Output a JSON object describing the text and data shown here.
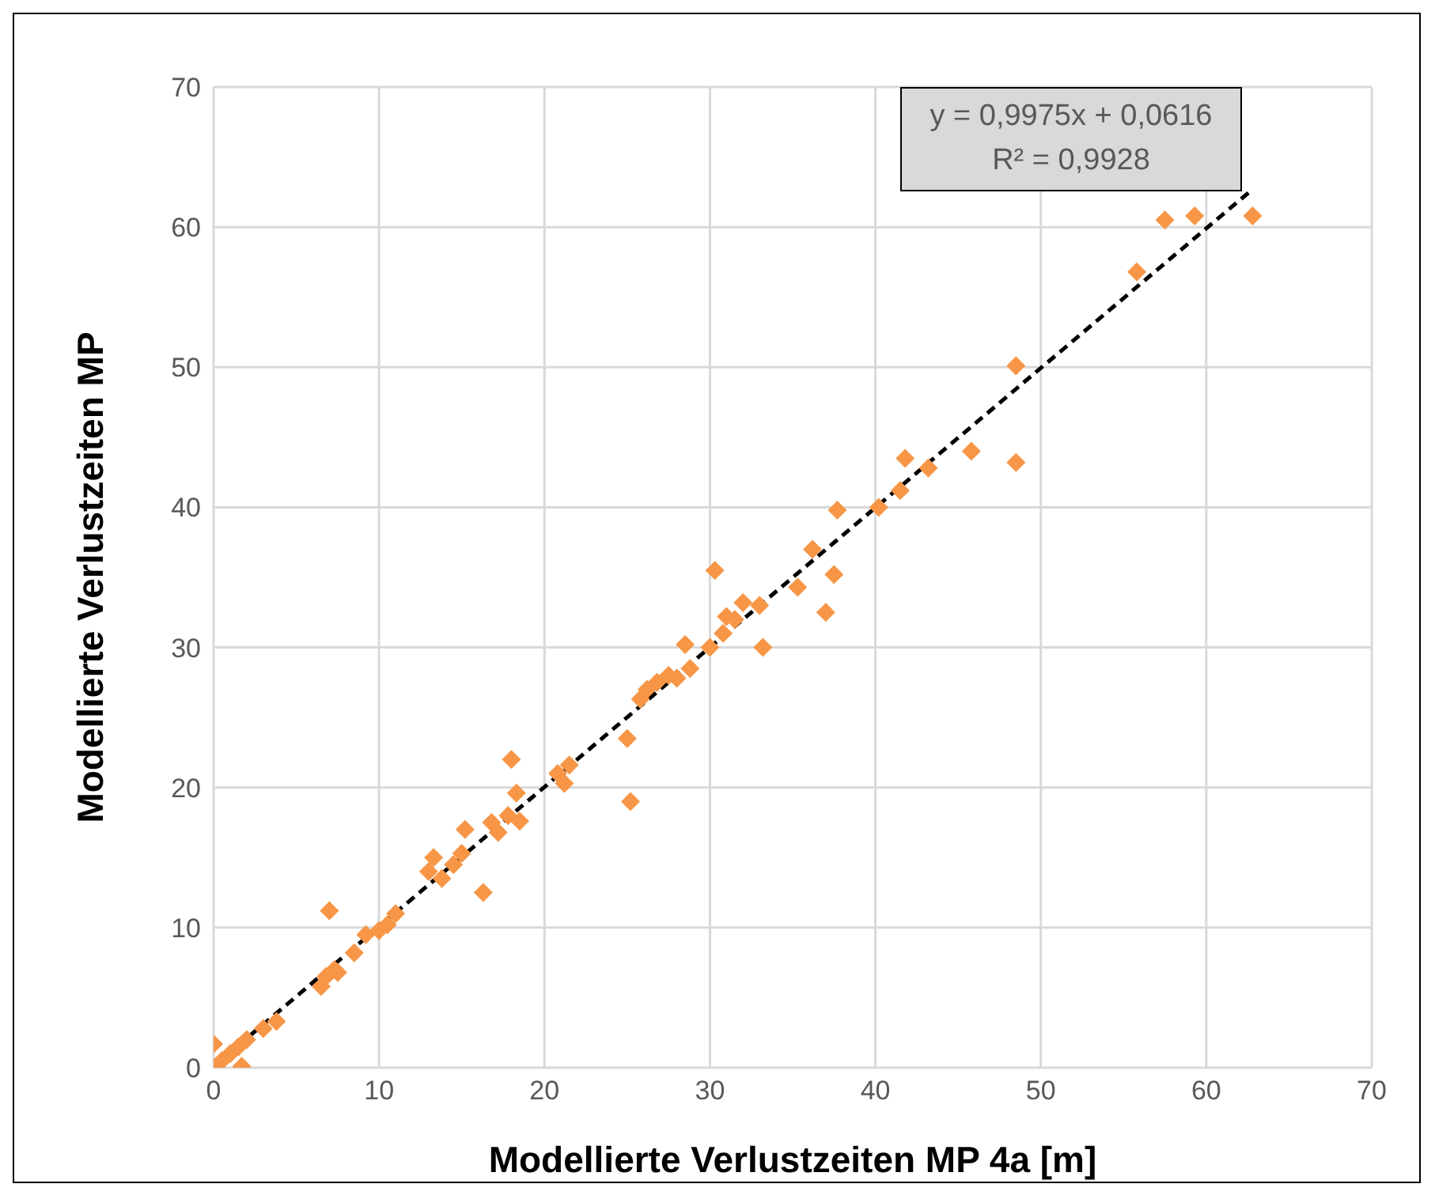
{
  "chart_data": {
    "type": "scatter",
    "xlabel": "Modellierte Verlustzeiten MP 4a [m]",
    "ylabel": "Modellierte Verlustzeiten MP",
    "xlim": [
      0,
      70
    ],
    "xticks": [
      0,
      10,
      20,
      30,
      40,
      50,
      60,
      70
    ],
    "ylim": [
      0,
      70
    ],
    "yticks": [
      0,
      10,
      20,
      30,
      40,
      50,
      60,
      70
    ],
    "grid": true,
    "marker": "diamond",
    "annotations": [
      "y = 0,9975x + 0,0616",
      "R² = 0,9928"
    ],
    "series": [
      {
        "type": "line",
        "color": "#000000",
        "line_style": "dashed",
        "marker": "none",
        "x": [
          0,
          62.8
        ],
        "values": [
          0.1,
          62.7
        ]
      },
      {
        "color": "#f79646",
        "x": [
          0,
          0,
          0.5,
          1,
          1.5,
          1.7,
          2,
          3,
          3.8,
          6.5,
          6.8,
          7,
          7.3,
          7.5,
          8.5,
          9.2,
          10,
          10.5,
          11,
          13,
          13.3,
          13.8,
          14.5,
          15,
          15.2,
          16.3,
          16.8,
          17.2,
          17.8,
          18,
          18.3,
          18.5,
          20.8,
          21.2,
          21.5,
          25,
          25.2,
          25.8,
          26.2,
          26.8,
          27.5,
          28,
          28.5,
          28.8,
          30,
          30.3,
          30.8,
          31,
          31.5,
          32,
          33,
          33.2,
          35.3,
          36.2,
          37,
          37.5,
          37.7,
          40.2,
          41.5,
          41.8,
          43.2,
          45.8,
          48.5,
          48.5,
          55.8,
          57.5,
          59.3,
          62.8
        ],
        "values": [
          0,
          1.7,
          0.5,
          1,
          1.5,
          0.1,
          2,
          2.8,
          3.3,
          5.8,
          6.5,
          11.2,
          7,
          6.8,
          8.2,
          9.5,
          9.8,
          10.2,
          11,
          14,
          15,
          13.5,
          14.5,
          15.3,
          17,
          12.5,
          17.5,
          16.8,
          18,
          22,
          19.6,
          17.6,
          21,
          20.3,
          21.6,
          23.5,
          19,
          26.3,
          27,
          27.5,
          28,
          27.8,
          30.2,
          28.5,
          30,
          35.5,
          31,
          32.2,
          32,
          33.2,
          33,
          30,
          34.3,
          37,
          32.5,
          35.2,
          39.8,
          40,
          41.2,
          43.5,
          42.8,
          44,
          43.2,
          50.1,
          56.8,
          60.5,
          60.8,
          60.8
        ]
      }
    ]
  }
}
